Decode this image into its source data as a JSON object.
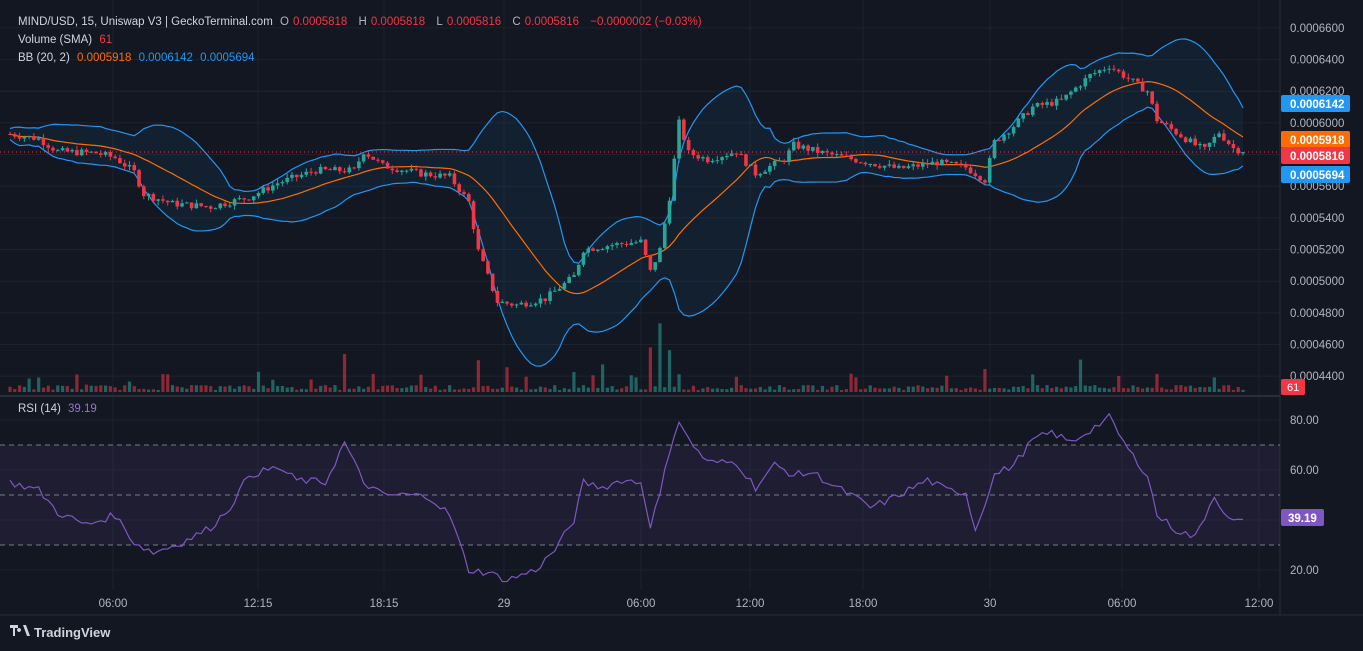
{
  "header": {
    "symbol": "MIND/USD, 15, Uniswap V3 | GeckoTerminal.com",
    "o_label": "O",
    "o_value": "0.0005818",
    "h_label": "H",
    "h_value": "0.0005818",
    "l_label": "L",
    "l_value": "0.0005816",
    "c_label": "C",
    "c_value": "0.0005816",
    "change": "−0.0000002 (−0.03%)"
  },
  "volume_legend": {
    "label": "Volume (SMA)",
    "value": "61"
  },
  "bb_legend": {
    "label": "BB (20, 2)",
    "basis": "0.0005918",
    "upper": "0.0006142",
    "lower": "0.0005694"
  },
  "rsi_legend": {
    "label": "RSI (14)",
    "value": "39.19"
  },
  "price_axis": {
    "ticks": [
      "0.0006600",
      "0.0006400",
      "0.0006200",
      "0.0006000",
      "0.0005800",
      "0.0005600",
      "0.0005400",
      "0.0005200",
      "0.0005000",
      "0.0004800",
      "0.0004600",
      "0.0004400"
    ],
    "tags": [
      {
        "value": "0.0006142",
        "color": "#2196f3"
      },
      {
        "value": "0.0005918",
        "color": "#ff6d00"
      },
      {
        "value": "0.0005816",
        "color": "#f23645"
      },
      {
        "value": "0.0005694",
        "color": "#2196f3"
      }
    ],
    "volume_tag": {
      "value": "61",
      "color": "#f23645"
    }
  },
  "rsi_axis": {
    "ticks": [
      "80.00",
      "60.00",
      "40.00",
      "20.00"
    ],
    "tag": {
      "value": "39.19",
      "color": "#7e57c2"
    }
  },
  "time_axis": {
    "labels": [
      "06:00",
      "12:15",
      "18:15",
      "29",
      "06:00",
      "12:00",
      "18:00",
      "30",
      "06:00",
      "12:00"
    ]
  },
  "footer": {
    "brand": "TradingView",
    "logo": "tradingview-logo"
  },
  "colors": {
    "up": "#26a69a",
    "down": "#f23645",
    "basis": "#ff6d00",
    "band": "#2196f3",
    "rsi": "#7e57c2"
  },
  "chart_data": [
    {
      "type": "candlestick",
      "title": "MIND/USD, 15, Uniswap V3",
      "ylim": [
        0.00043,
        0.000665
      ],
      "price_path": [
        [
          0,
          0.000593
        ],
        [
          6,
          0.00059
        ],
        [
          10,
          0.000582
        ],
        [
          18,
          0.000581
        ],
        [
          22,
          0.000578
        ],
        [
          26,
          0.000569
        ],
        [
          28,
          0.000555
        ],
        [
          34,
          0.000549
        ],
        [
          42,
          0.000547
        ],
        [
          50,
          0.000553
        ],
        [
          56,
          0.000562
        ],
        [
          64,
          0.00057
        ],
        [
          72,
          0.00057
        ],
        [
          74,
          0.000582
        ],
        [
          78,
          0.000573
        ],
        [
          86,
          0.000568
        ],
        [
          92,
          0.000566
        ],
        [
          96,
          0.00055
        ],
        [
          98,
          0.000519
        ],
        [
          102,
          0.000487
        ],
        [
          106,
          0.000485
        ],
        [
          112,
          0.000489
        ],
        [
          118,
          0.000503
        ],
        [
          120,
          0.00052
        ],
        [
          126,
          0.000523
        ],
        [
          132,
          0.000525
        ],
        [
          134,
          0.000506
        ],
        [
          136,
          0.00052
        ],
        [
          138,
          0.000553
        ],
        [
          140,
          0.0006
        ],
        [
          142,
          0.000581
        ],
        [
          146,
          0.000577
        ],
        [
          152,
          0.000582
        ],
        [
          156,
          0.000568
        ],
        [
          162,
          0.000577
        ],
        [
          164,
          0.000586
        ],
        [
          170,
          0.000581
        ],
        [
          178,
          0.000576
        ],
        [
          186,
          0.000571
        ],
        [
          194,
          0.000575
        ],
        [
          200,
          0.000572
        ],
        [
          204,
          0.000564
        ],
        [
          206,
          0.000588
        ],
        [
          210,
          0.000598
        ],
        [
          214,
          0.00061
        ],
        [
          220,
          0.000614
        ],
        [
          226,
          0.00063
        ],
        [
          230,
          0.000636
        ],
        [
          234,
          0.000628
        ],
        [
          238,
          0.00062
        ],
        [
          240,
          0.000602
        ],
        [
          244,
          0.000594
        ],
        [
          248,
          0.000586
        ],
        [
          250,
          0.000583
        ],
        [
          253,
          0.000594
        ],
        [
          256,
          0.000584
        ],
        [
          258,
          0.000582
        ]
      ]
    },
    {
      "type": "line",
      "title": "RSI (14)",
      "ylim": [
        12,
        88
      ],
      "levels": [
        70,
        50,
        30
      ],
      "rsi_path": [
        [
          0,
          55
        ],
        [
          6,
          52
        ],
        [
          10,
          43
        ],
        [
          16,
          38
        ],
        [
          22,
          42
        ],
        [
          26,
          31
        ],
        [
          30,
          27
        ],
        [
          36,
          31
        ],
        [
          42,
          37
        ],
        [
          46,
          45
        ],
        [
          50,
          58
        ],
        [
          56,
          61
        ],
        [
          60,
          56
        ],
        [
          66,
          55
        ],
        [
          70,
          71
        ],
        [
          74,
          55
        ],
        [
          78,
          50
        ],
        [
          84,
          50
        ],
        [
          88,
          49
        ],
        [
          92,
          42
        ],
        [
          96,
          20
        ],
        [
          100,
          19
        ],
        [
          104,
          16
        ],
        [
          110,
          20
        ],
        [
          114,
          28
        ],
        [
          118,
          40
        ],
        [
          120,
          55
        ],
        [
          124,
          53
        ],
        [
          128,
          56
        ],
        [
          132,
          55
        ],
        [
          134,
          38
        ],
        [
          136,
          50
        ],
        [
          138,
          68
        ],
        [
          140,
          80
        ],
        [
          142,
          72
        ],
        [
          146,
          63
        ],
        [
          152,
          63
        ],
        [
          156,
          53
        ],
        [
          160,
          62
        ],
        [
          164,
          58
        ],
        [
          168,
          59
        ],
        [
          172,
          54
        ],
        [
          176,
          50
        ],
        [
          180,
          45
        ],
        [
          184,
          48
        ],
        [
          188,
          52
        ],
        [
          192,
          56
        ],
        [
          196,
          52
        ],
        [
          200,
          51
        ],
        [
          202,
          36
        ],
        [
          206,
          58
        ],
        [
          210,
          62
        ],
        [
          214,
          72
        ],
        [
          218,
          75
        ],
        [
          222,
          71
        ],
        [
          226,
          76
        ],
        [
          230,
          81
        ],
        [
          234,
          68
        ],
        [
          238,
          58
        ],
        [
          240,
          42
        ],
        [
          244,
          36
        ],
        [
          248,
          33
        ],
        [
          252,
          50
        ],
        [
          255,
          40
        ],
        [
          258,
          39
        ]
      ]
    },
    {
      "type": "bar",
      "title": "Volume (SMA)",
      "spikes": [
        [
          6,
          1.4
        ],
        [
          14,
          1.4
        ],
        [
          33,
          1.5
        ],
        [
          52,
          1.8
        ],
        [
          70,
          3.5
        ],
        [
          76,
          1.5
        ],
        [
          86,
          1.5
        ],
        [
          98,
          2.8
        ],
        [
          104,
          2.2
        ],
        [
          118,
          1.8
        ],
        [
          124,
          2.4
        ],
        [
          134,
          4.2
        ],
        [
          136,
          6.5
        ],
        [
          138,
          3.8
        ],
        [
          140,
          1.5
        ],
        [
          152,
          1.4
        ],
        [
          176,
          1.5
        ],
        [
          204,
          2.2
        ],
        [
          214,
          1.6
        ],
        [
          224,
          3.2
        ],
        [
          232,
          1.5
        ],
        [
          240,
          1.6
        ],
        [
          252,
          1.4
        ]
      ]
    }
  ]
}
